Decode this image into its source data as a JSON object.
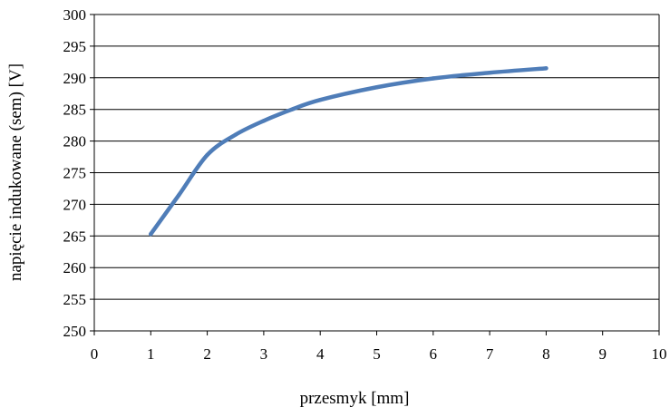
{
  "chart_data": {
    "type": "line",
    "title": "",
    "xlabel": "przesmyk [mm]",
    "ylabel": "napięcie indukowane (sem) [V]",
    "xlim": [
      0,
      10
    ],
    "ylim": [
      250,
      300
    ],
    "x_ticks": [
      "0",
      "1",
      "2",
      "3",
      "4",
      "5",
      "6",
      "7",
      "8",
      "9",
      "10"
    ],
    "y_ticks": [
      "300",
      "295",
      "290",
      "285",
      "280",
      "275",
      "270",
      "265",
      "260",
      "255",
      "250"
    ],
    "grid": "horizontal",
    "legend": "none",
    "series": [
      {
        "color": "#4F7DB8",
        "x": [
          1,
          1.5,
          2,
          2.5,
          3,
          3.5,
          4,
          5,
          6,
          7,
          8
        ],
        "y": [
          265.3,
          271.5,
          277.8,
          281.0,
          283.2,
          285.0,
          286.5,
          288.5,
          289.9,
          290.8,
          291.5
        ]
      }
    ]
  }
}
